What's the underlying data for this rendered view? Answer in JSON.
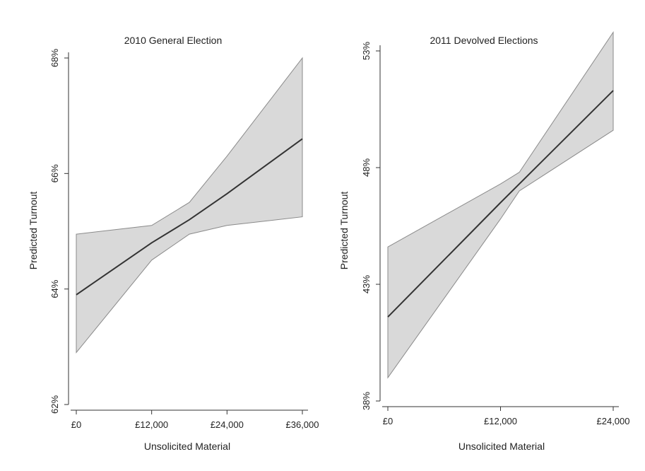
{
  "chart_data": [
    {
      "type": "line",
      "title": "2010 General Election",
      "xlabel": "Unsolicited Material",
      "ylabel": "Predicted Turnout",
      "xlim": [
        0,
        36000
      ],
      "ylim": [
        62,
        68
      ],
      "x_ticks": [
        0,
        12000,
        24000,
        36000
      ],
      "x_tick_labels": [
        "£0",
        "£12,000",
        "£24,000",
        "£36,000"
      ],
      "y_ticks": [
        62,
        64,
        66,
        68
      ],
      "y_tick_labels": [
        "62%",
        "64%",
        "66%",
        "68%"
      ],
      "grid": false,
      "legend": "none",
      "band_color": "#d9d9d9",
      "line_color": "#333333",
      "series": [
        {
          "x": [
            0,
            12000,
            18000,
            24000,
            36000
          ],
          "estimate": [
            63.9,
            64.8,
            65.2,
            65.65,
            66.6
          ],
          "lower": [
            62.9,
            64.5,
            64.95,
            65.1,
            65.25
          ],
          "upper": [
            64.95,
            65.1,
            65.5,
            66.3,
            68.0
          ]
        }
      ]
    },
    {
      "type": "line",
      "title": "2011 Devolved Elections",
      "xlabel": "Unsolicited Material",
      "ylabel": "Predicted Turnout",
      "xlim": [
        0,
        24000
      ],
      "ylim": [
        38,
        53
      ],
      "x_ticks": [
        0,
        12000,
        24000
      ],
      "x_tick_labels": [
        "£0",
        "£12,000",
        "£24,000"
      ],
      "y_ticks": [
        38,
        43,
        48,
        53
      ],
      "y_tick_labels": [
        "38%",
        "43%",
        "48%",
        "53%"
      ],
      "grid": false,
      "legend": "none",
      "band_color": "#d9d9d9",
      "line_color": "#333333",
      "series": [
        {
          "x": [
            0,
            12000,
            14000,
            24000
          ],
          "estimate": [
            41.6,
            46.5,
            47.3,
            51.3
          ],
          "lower": [
            39.0,
            45.8,
            47.0,
            49.6
          ],
          "upper": [
            44.6,
            47.3,
            47.8,
            53.8
          ]
        }
      ]
    }
  ]
}
